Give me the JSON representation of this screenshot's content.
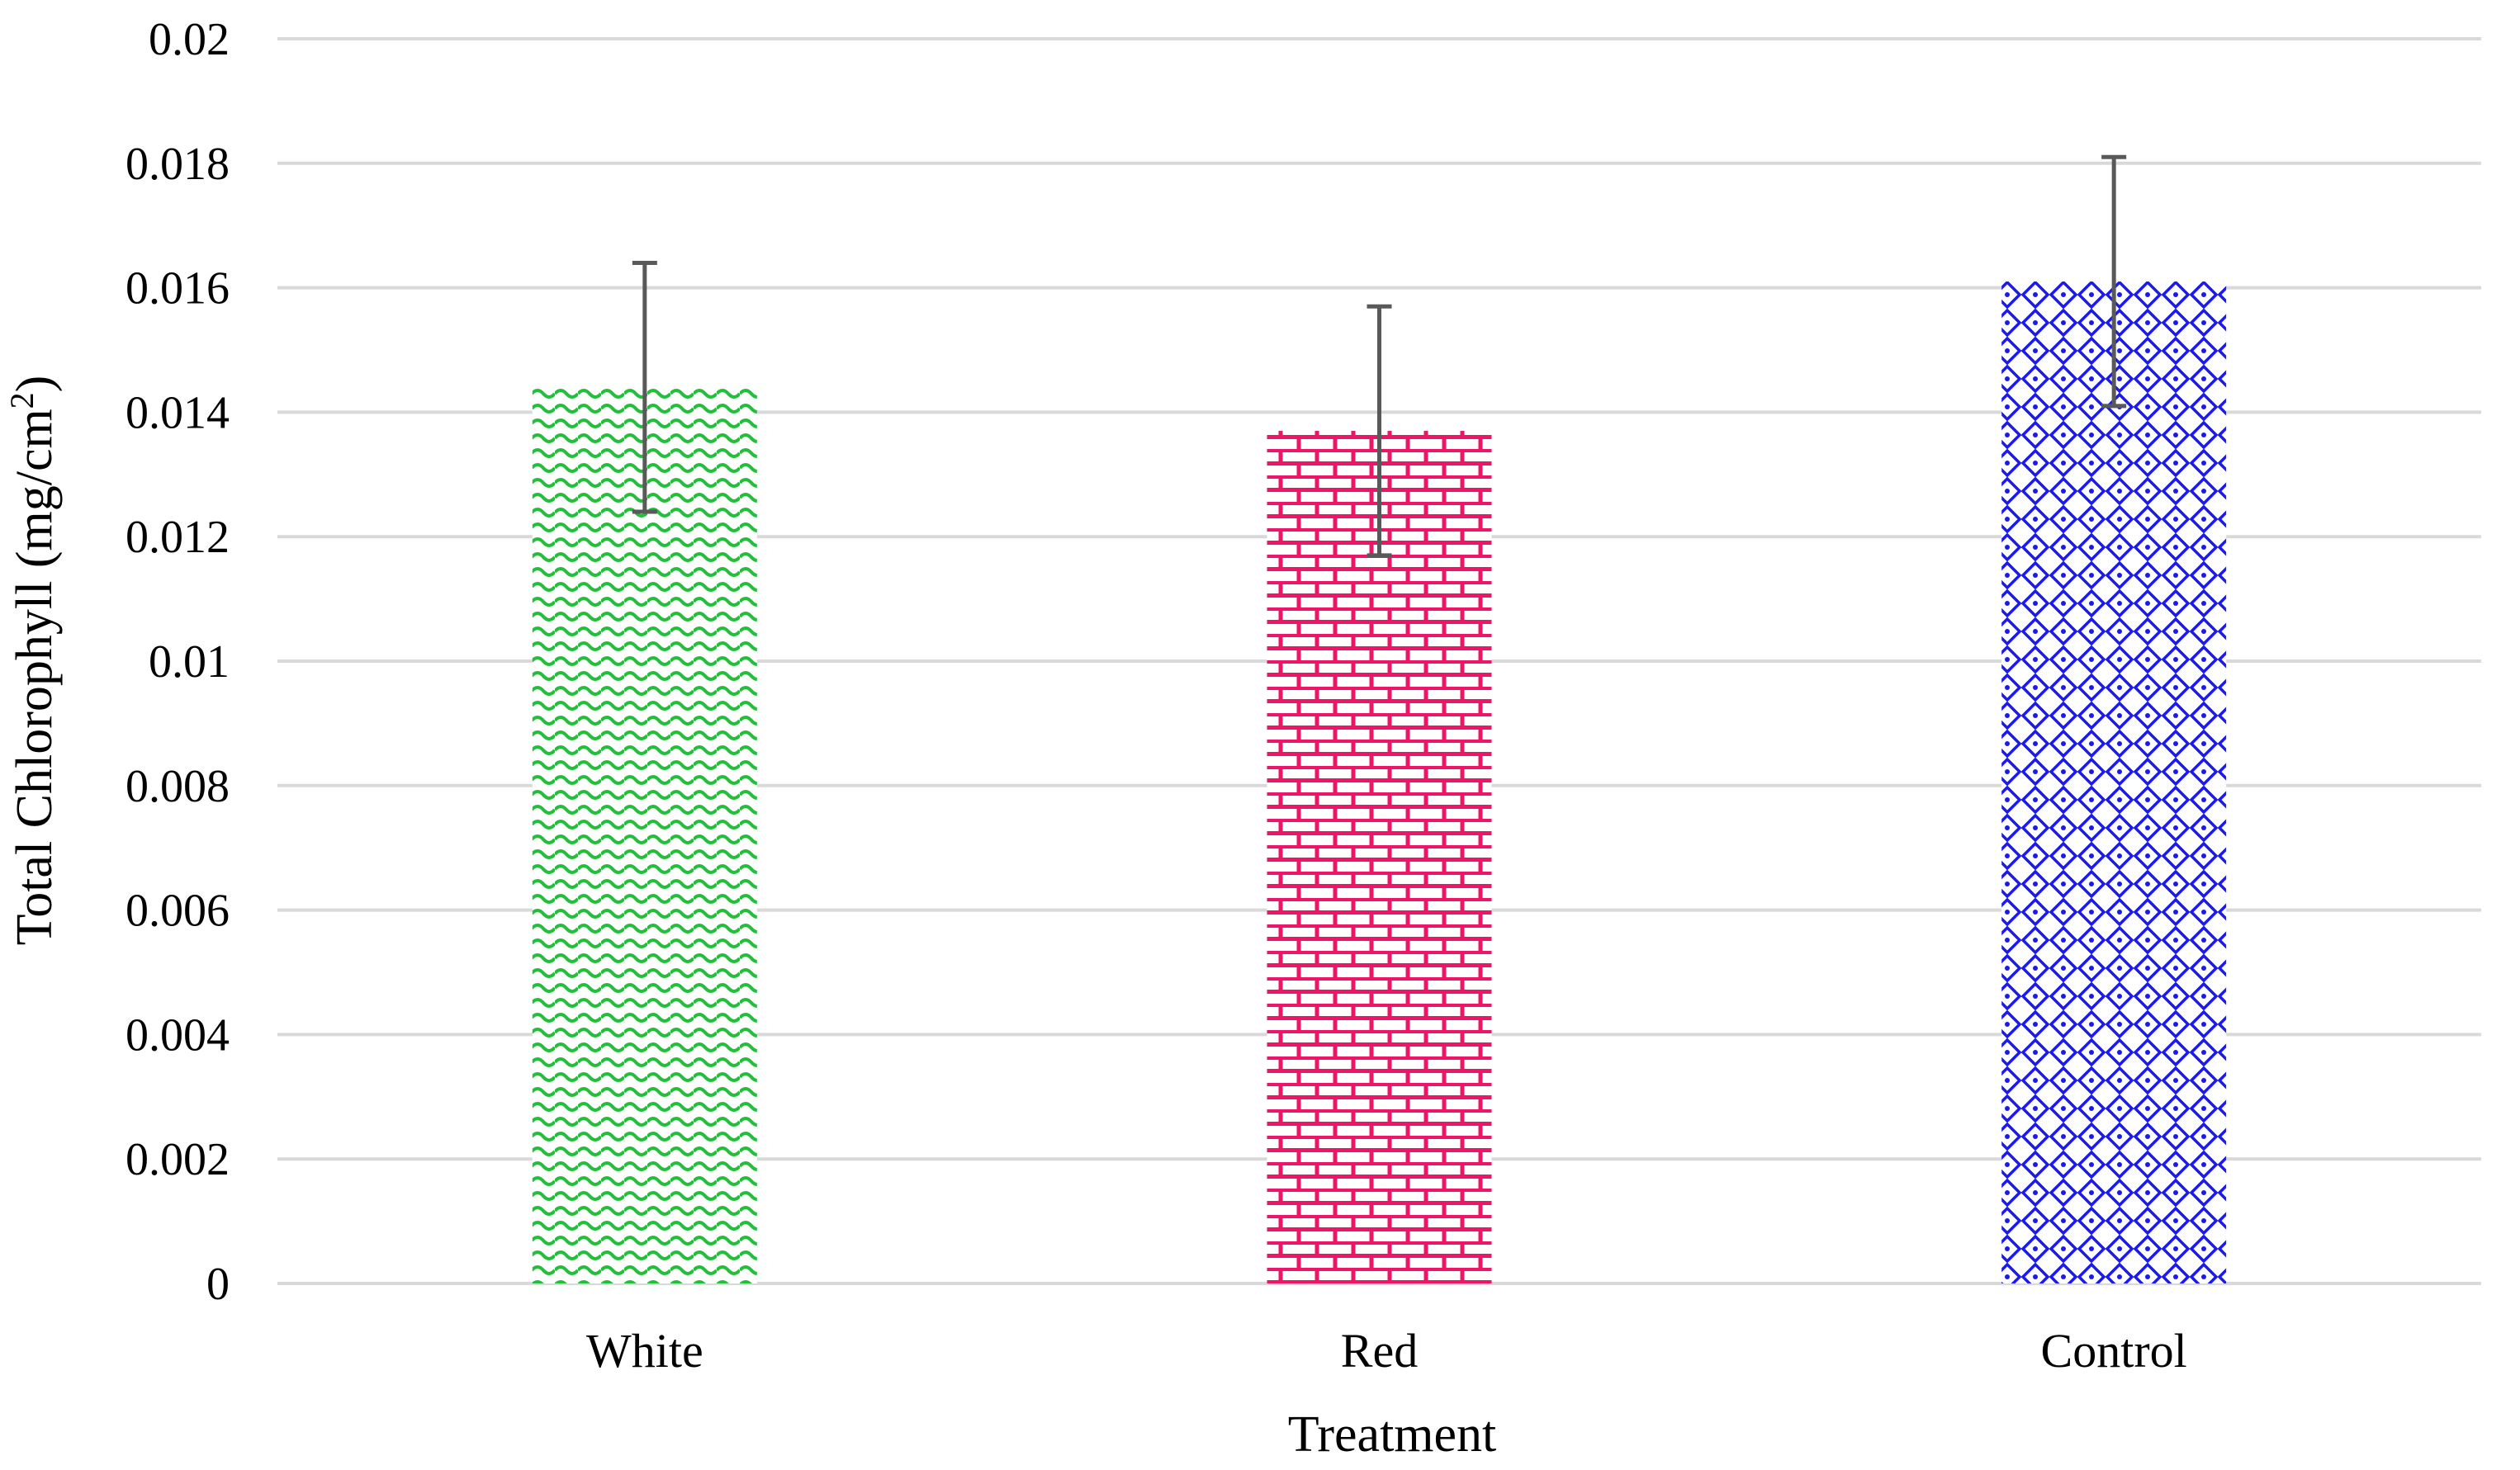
{
  "chart_data": {
    "type": "bar",
    "title": "",
    "xlabel": "Treatment",
    "ylabel": "Total Chlorophyll (mg/cm",
    "ylabel_superscript": "2",
    "ylabel_suffix": ")",
    "categories": [
      "White",
      "Red",
      "Control"
    ],
    "values": [
      0.0144,
      0.0137,
      0.0161
    ],
    "error": [
      0.002,
      0.002,
      0.002
    ],
    "ylim": [
      0,
      0.02
    ],
    "yticks": [
      0,
      0.002,
      0.004,
      0.006,
      0.008,
      0.01,
      0.012,
      0.014,
      0.016,
      0.018,
      0.02
    ],
    "ytick_labels": [
      "0",
      "0.002",
      "0.004",
      "0.006",
      "0.008",
      "0.01",
      "0.012",
      "0.014",
      "0.016",
      "0.018",
      "0.02"
    ],
    "grid": true,
    "legend": "none",
    "colors": {
      "White": "#22c03a",
      "Red": "#ee1466",
      "Control": "#1a1af0",
      "grid": "#d9d9d9",
      "error_bar": "#595959"
    },
    "patterns": {
      "White": "wave",
      "Red": "brick",
      "Control": "diamond-lattice"
    }
  }
}
